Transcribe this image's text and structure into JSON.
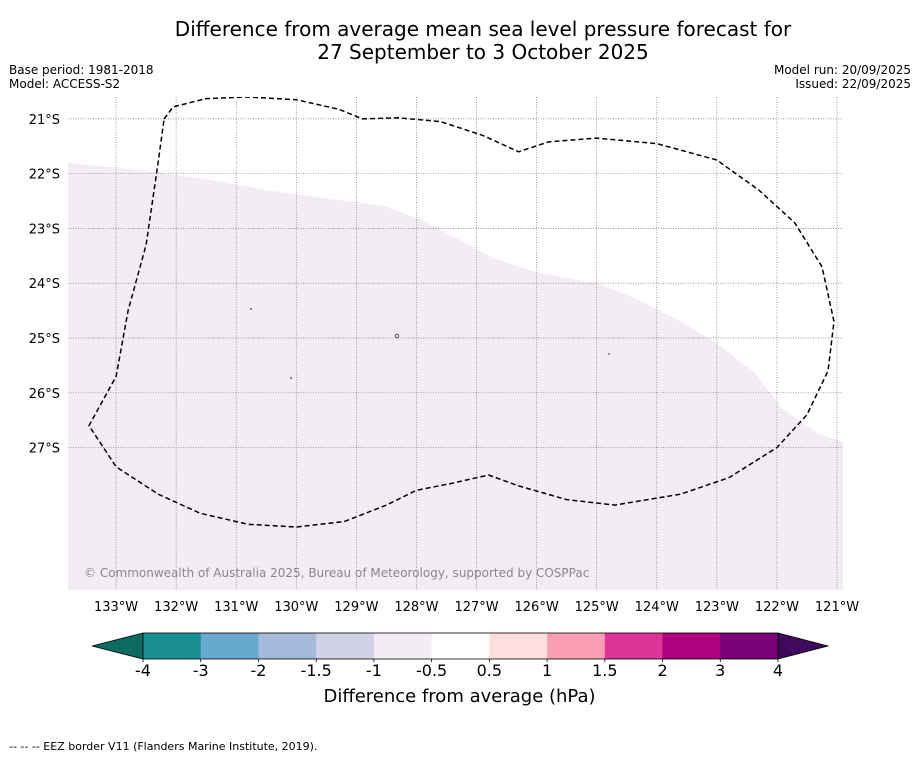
{
  "title_line1": "Difference from average mean sea level pressure forecast for",
  "title_line2": "27 September to 3 October 2025",
  "meta_left": {
    "base_period": "Base period: 1981-2018",
    "model": "Model: ACCESS-S2"
  },
  "meta_right": {
    "model_run": "Model run: 20/09/2025",
    "issued": "Issued: 22/09/2025"
  },
  "map": {
    "lon_range": [
      -133.8,
      -120.9
    ],
    "lat_range": [
      -29.6,
      -20.6
    ],
    "lon_labels": [
      {
        "lon": -133,
        "label": "133°W"
      },
      {
        "lon": -132,
        "label": "132°W"
      },
      {
        "lon": -131,
        "label": "131°W"
      },
      {
        "lon": -130,
        "label": "130°W"
      },
      {
        "lon": -129,
        "label": "129°W"
      },
      {
        "lon": -128,
        "label": "128°W"
      },
      {
        "lon": -127,
        "label": "127°W"
      },
      {
        "lon": -126,
        "label": "126°W"
      },
      {
        "lon": -125,
        "label": "125°W"
      },
      {
        "lon": -124,
        "label": "124°W"
      },
      {
        "lon": -123,
        "label": "123°W"
      },
      {
        "lon": -122,
        "label": "122°W"
      },
      {
        "lon": -121,
        "label": "121°W"
      }
    ],
    "lat_labels": [
      {
        "lat": -21,
        "label": "21°S"
      },
      {
        "lat": -22,
        "label": "22°S"
      },
      {
        "lat": -23,
        "label": "23°S"
      },
      {
        "lat": -24,
        "label": "24°S"
      },
      {
        "lat": -25,
        "label": "25°S"
      },
      {
        "lat": -26,
        "label": "26°S"
      },
      {
        "lat": -27,
        "label": "27°S"
      }
    ],
    "shaded_region": {
      "class_color": "#f4ecf5",
      "class_range": "-1 to -0.5 hPa",
      "boundary": [
        [
          -133.8,
          -21.8
        ],
        [
          -132.5,
          -21.95
        ],
        [
          -131.5,
          -22.1
        ],
        [
          -130.5,
          -22.3
        ],
        [
          -129.5,
          -22.45
        ],
        [
          -128.5,
          -22.6
        ],
        [
          -127.9,
          -22.85
        ],
        [
          -127.3,
          -23.2
        ],
        [
          -126.7,
          -23.55
        ],
        [
          -126.0,
          -23.8
        ],
        [
          -125.0,
          -24.0
        ],
        [
          -124.3,
          -24.3
        ],
        [
          -123.6,
          -24.7
        ],
        [
          -123.0,
          -25.1
        ],
        [
          -122.4,
          -25.6
        ],
        [
          -121.9,
          -26.3
        ],
        [
          -121.3,
          -26.75
        ],
        [
          -120.9,
          -26.9
        ]
      ]
    },
    "eez_border": [
      [
        -132.2,
        -21.0
      ],
      [
        -132.05,
        -20.78
      ],
      [
        -131.5,
        -20.63
      ],
      [
        -130.8,
        -20.6
      ],
      [
        -130.0,
        -20.65
      ],
      [
        -129.3,
        -20.82
      ],
      [
        -128.9,
        -21.0
      ],
      [
        -128.3,
        -20.98
      ],
      [
        -127.6,
        -21.05
      ],
      [
        -126.9,
        -21.3
      ],
      [
        -126.3,
        -21.6
      ],
      [
        -125.8,
        -21.42
      ],
      [
        -125.0,
        -21.35
      ],
      [
        -124.0,
        -21.45
      ],
      [
        -123.0,
        -21.75
      ],
      [
        -122.3,
        -22.3
      ],
      [
        -121.7,
        -22.9
      ],
      [
        -121.25,
        -23.7
      ],
      [
        -121.05,
        -24.7
      ],
      [
        -121.15,
        -25.6
      ],
      [
        -121.5,
        -26.4
      ],
      [
        -122.0,
        -27.0
      ],
      [
        -122.8,
        -27.55
      ],
      [
        -123.6,
        -27.85
      ],
      [
        -124.7,
        -28.05
      ],
      [
        -125.5,
        -27.95
      ],
      [
        -126.3,
        -27.7
      ],
      [
        -126.8,
        -27.5
      ],
      [
        -127.4,
        -27.65
      ],
      [
        -128.0,
        -27.78
      ],
      [
        -128.5,
        -28.05
      ],
      [
        -129.2,
        -28.35
      ],
      [
        -130.0,
        -28.45
      ],
      [
        -130.8,
        -28.4
      ],
      [
        -131.6,
        -28.2
      ],
      [
        -132.3,
        -27.85
      ],
      [
        -133.0,
        -27.35
      ],
      [
        -133.45,
        -26.6
      ],
      [
        -133.0,
        -25.7
      ],
      [
        -132.8,
        -24.5
      ],
      [
        -132.5,
        -23.3
      ],
      [
        -132.3,
        -21.8
      ],
      [
        -132.2,
        -21.0
      ]
    ],
    "copyright": "© Commonwealth of Australia 2025, Bureau of Meteorology, supported by COSPPac"
  },
  "colorbar": {
    "title": "Difference from average (hPa)",
    "under_color": "#0b6b63",
    "over_color": "#3f0a5c",
    "segments": [
      {
        "from": -4,
        "to": -3,
        "color": "#1a9095"
      },
      {
        "from": -3,
        "to": -2,
        "color": "#67a9cf"
      },
      {
        "from": -2,
        "to": -1.5,
        "color": "#a6badb"
      },
      {
        "from": -1.5,
        "to": -1,
        "color": "#d0d1e6"
      },
      {
        "from": -1,
        "to": -0.5,
        "color": "#f4ecf5"
      },
      {
        "from": -0.5,
        "to": 0.5,
        "color": "#ffffff"
      },
      {
        "from": 0.5,
        "to": 1,
        "color": "#fde0dd"
      },
      {
        "from": 1,
        "to": 1.5,
        "color": "#fa9fb5"
      },
      {
        "from": 1.5,
        "to": 2,
        "color": "#dd3497"
      },
      {
        "from": 2,
        "to": 3,
        "color": "#ae017e"
      },
      {
        "from": 3,
        "to": 4,
        "color": "#7a0177"
      }
    ],
    "tick_labels": [
      "-4",
      "-3",
      "-2",
      "-1.5",
      "-1",
      "-0.5",
      "0.5",
      "1",
      "1.5",
      "2",
      "3",
      "4"
    ]
  },
  "footer": "-- -- -- EEZ border V11 (Flanders Marine Institute, 2019)."
}
